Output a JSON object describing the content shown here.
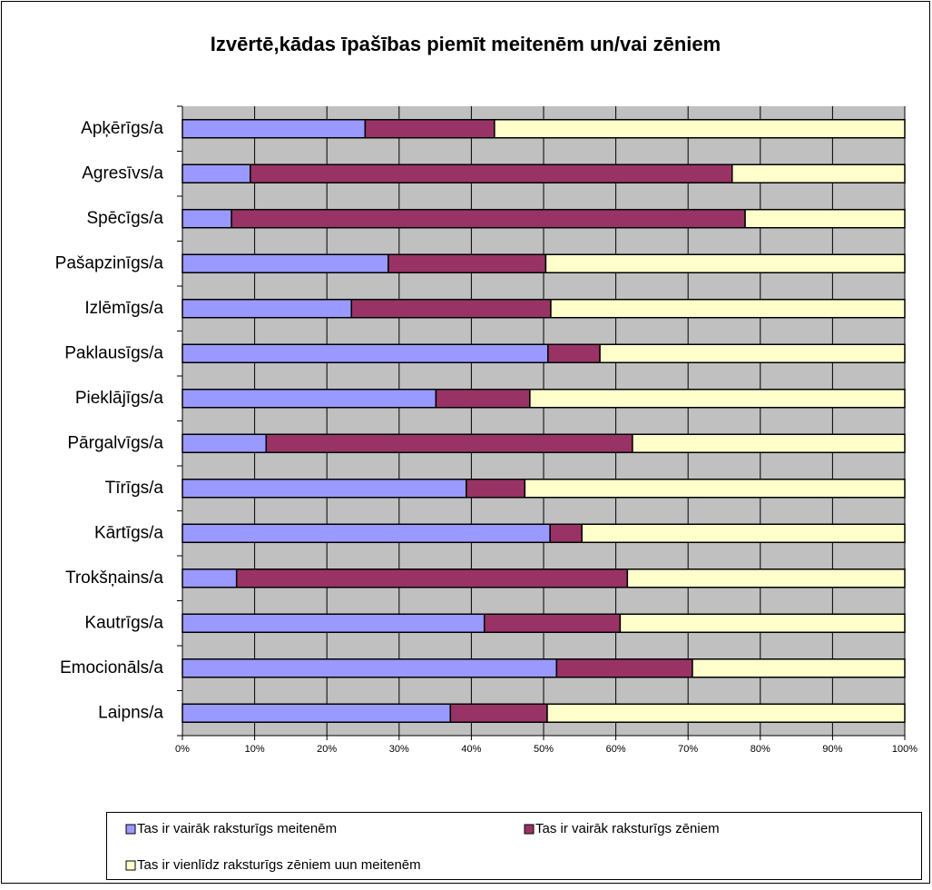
{
  "chart_data": {
    "type": "stacked_barh",
    "title": "Izvērtē,kādas īpašības piemīt meitenēm un/vai zēniem",
    "categories": [
      "Apķērīgs/a",
      "Agresīvs/a",
      "Spēcīgs/a",
      "Pašapzinīgs/a",
      "Izlēmīgs/a",
      "Paklausīgs/a",
      "Pieklājīgs/a",
      "Pārgalvīgs/a",
      "Tīrīgs/a",
      "Kārtīgs/a",
      "Trokšņains/a",
      "Kautrīgs/a",
      "Emocionāls/a",
      "Laipns/a"
    ],
    "series": [
      {
        "name": "Tas ir vairāk raksturīgs meitenēm",
        "color": "#9999ff",
        "values": [
          25.3,
          9.4,
          6.8,
          28.5,
          23.4,
          50.6,
          35.1,
          11.6,
          39.3,
          50.9,
          7.5,
          41.8,
          51.8,
          37.1
        ]
      },
      {
        "name": "Tas ir vairāk raksturīgs zēniem",
        "color": "#993366",
        "values": [
          17.9,
          66.7,
          71.1,
          21.8,
          27.6,
          7.2,
          13.0,
          50.7,
          8.1,
          4.4,
          54.1,
          18.8,
          18.8,
          13.4
        ]
      },
      {
        "name": "Tas ir vienlīdz raksturīgs zēniem uun meitenēm",
        "color": "#ffffcc",
        "values": [
          56.8,
          23.9,
          22.1,
          49.7,
          49.0,
          42.2,
          51.9,
          37.7,
          52.6,
          44.7,
          38.4,
          39.4,
          29.4,
          49.5
        ]
      }
    ],
    "xlim": [
      0,
      100
    ],
    "xticks": [
      {
        "value": 0,
        "label": "0%"
      },
      {
        "value": 10,
        "label": "10%"
      },
      {
        "value": 20,
        "label": "20%"
      },
      {
        "value": 30,
        "label": "30%"
      },
      {
        "value": 40,
        "label": "40%"
      },
      {
        "value": 50,
        "label": "50%"
      },
      {
        "value": 60,
        "label": "60%"
      },
      {
        "value": 70,
        "label": "70%"
      },
      {
        "value": 80,
        "label": "80%"
      },
      {
        "value": 90,
        "label": "90%"
      },
      {
        "value": 100,
        "label": "100%"
      }
    ],
    "grid": true,
    "plot_background": "#c0c0c0"
  }
}
